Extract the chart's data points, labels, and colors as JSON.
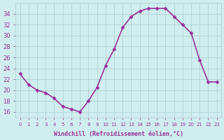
{
  "x": [
    0,
    1,
    2,
    3,
    4,
    5,
    6,
    7,
    8,
    9,
    10,
    11,
    12,
    13,
    14,
    15,
    16,
    17,
    18,
    19,
    20,
    21,
    22,
    23
  ],
  "y": [
    23,
    21,
    20,
    19.5,
    18.5,
    17,
    16.5,
    16,
    18,
    20.5,
    24.5,
    27.5,
    31.5,
    33.5,
    34.5,
    35,
    35,
    35,
    33.5,
    32,
    30.5,
    25.5,
    21.5,
    21.5
  ],
  "line_color": "#993399",
  "marker": "D",
  "marker_size": 2.5,
  "linewidth": 1.2,
  "xlim": [
    -0.5,
    23.5
  ],
  "ylim": [
    15,
    36
  ],
  "yticks": [
    16,
    18,
    20,
    22,
    24,
    26,
    28,
    30,
    32,
    34
  ],
  "xtick_labels": [
    "0",
    "1",
    "2",
    "3",
    "4",
    "5",
    "6",
    "7",
    "8",
    "9",
    "10",
    "11",
    "12",
    "13",
    "14",
    "15",
    "16",
    "17",
    "18",
    "19",
    "20",
    "21",
    "22",
    "23"
  ],
  "xlabel": "Windchill (Refroidissement éolien,°C)",
  "background_color": "#d0eef0",
  "grid_color": "#aacccc",
  "tick_color": "#993399",
  "label_color": "#993399"
}
